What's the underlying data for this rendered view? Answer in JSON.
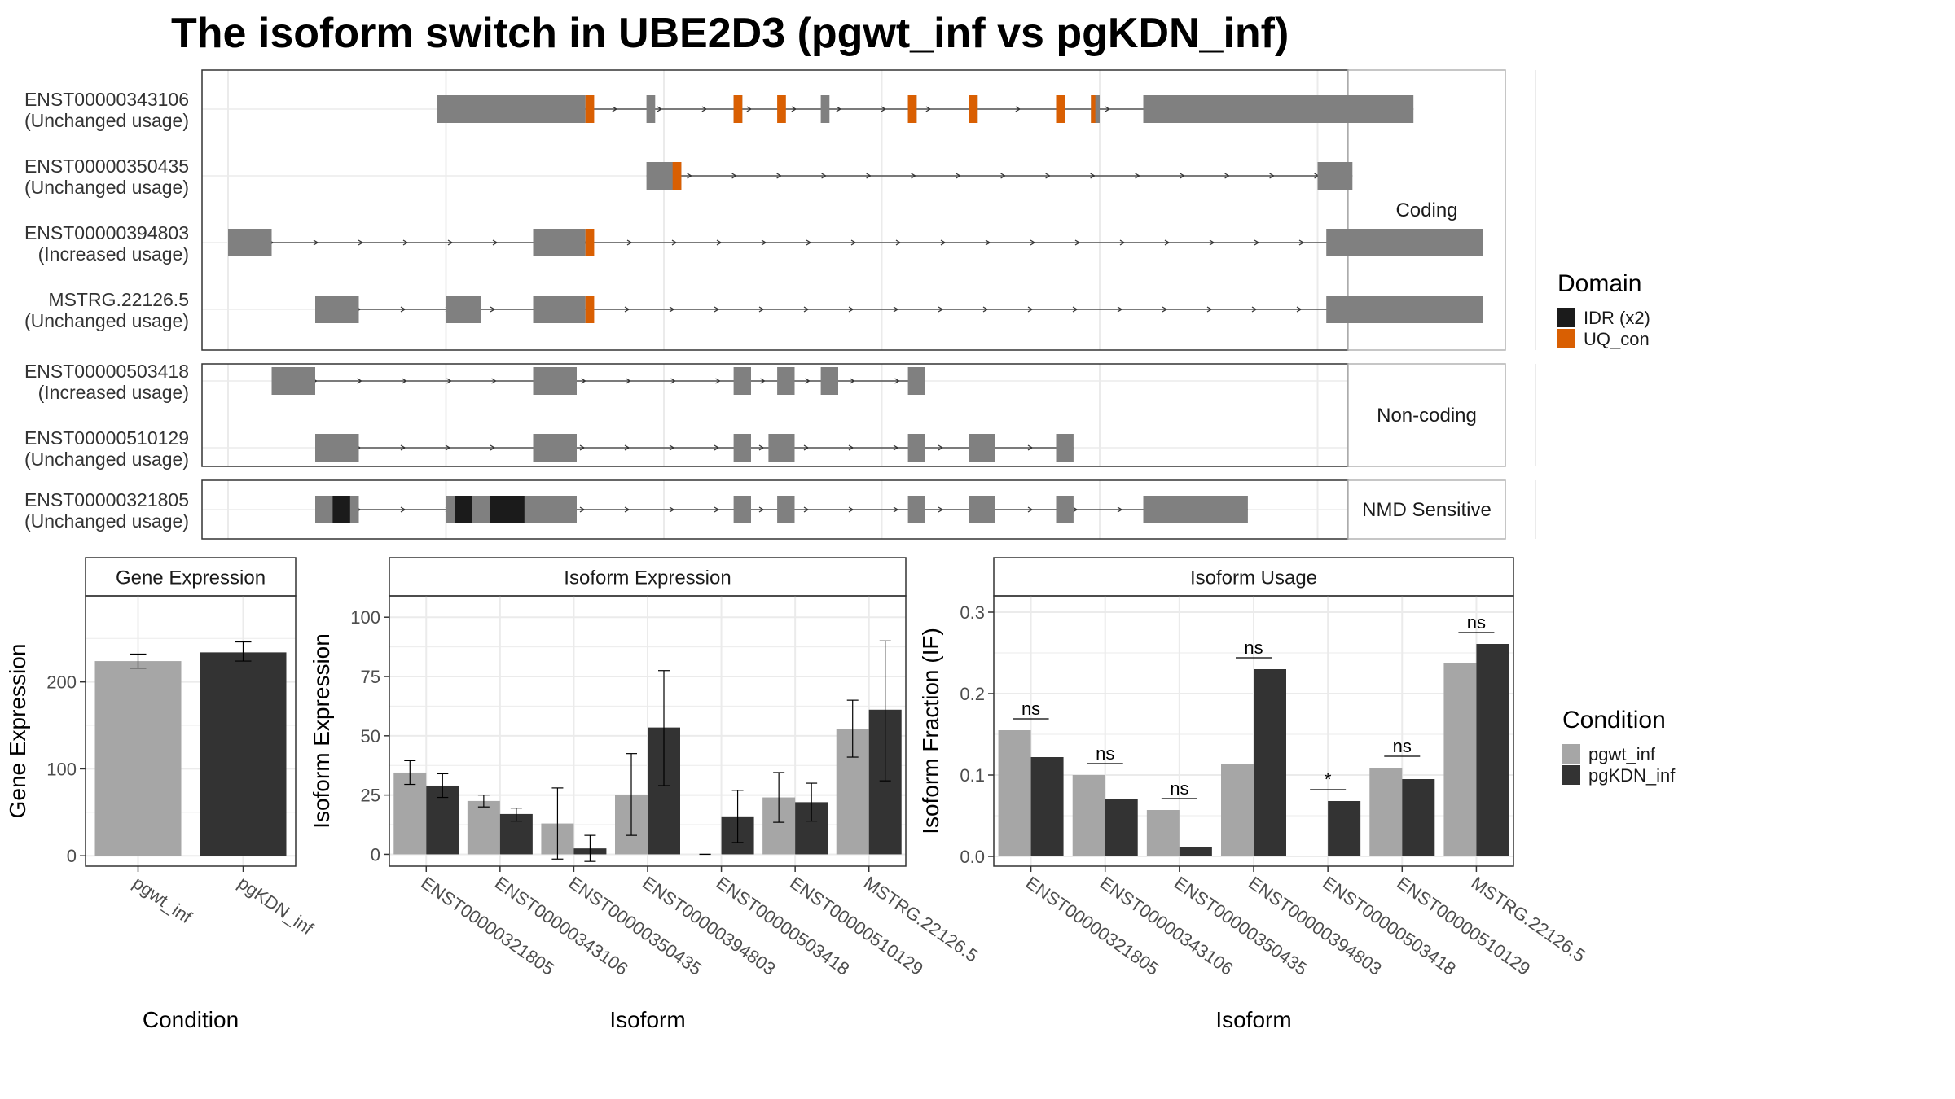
{
  "title": "The isoform switch in UBE2D3 (pgwt_inf vs pgKDN_inf)",
  "colors": {
    "exon": "#808080",
    "domain_uq": "#D95F02",
    "domain_idr": "#1B1B1B",
    "cond_wt": "#A6A6A6",
    "cond_kdn": "#333333",
    "grid": "#EBEBEB",
    "panel_border": "#333333",
    "strip_border": "#B3B3B3"
  },
  "structure": {
    "groups": [
      "Coding",
      "Non-coding",
      "NMD Sensitive"
    ],
    "transcripts": [
      {
        "id": "ENST00000343106",
        "usage": "(Unchanged usage)",
        "group": "Coding",
        "exons": [
          [
            0.24,
            0.41
          ],
          [
            0.48,
            0.49
          ],
          [
            0.58,
            0.59
          ],
          [
            0.68,
            0.69
          ],
          [
            0.78,
            0.79
          ],
          [
            0.85,
            0.86
          ],
          [
            0.95,
            0.96
          ],
          [
            0.99,
            1.0
          ],
          [
            1.05,
            1.36
          ]
        ],
        "domains": [
          [
            0.41,
            0.42,
            "UQ_con"
          ],
          [
            0.58,
            0.59,
            "UQ_con"
          ],
          [
            0.63,
            0.64,
            "UQ_con"
          ],
          [
            0.78,
            0.79,
            "UQ_con"
          ],
          [
            0.85,
            0.86,
            "UQ_con"
          ],
          [
            0.95,
            0.96,
            "UQ_con"
          ],
          [
            0.99,
            0.995,
            "UQ_con"
          ]
        ]
      },
      {
        "id": "ENST00000350435",
        "usage": "(Unchanged usage)",
        "group": "Coding",
        "exons": [
          [
            0.48,
            0.52
          ],
          [
            1.25,
            1.29
          ]
        ],
        "domains": [
          [
            0.51,
            0.52,
            "UQ_con"
          ]
        ]
      },
      {
        "id": "ENST00000394803",
        "usage": "(Increased usage)",
        "group": "Coding",
        "exons": [
          [
            0.0,
            0.05
          ],
          [
            0.35,
            0.41
          ],
          [
            1.26,
            1.44
          ]
        ],
        "domains": [
          [
            0.41,
            0.42,
            "UQ_con"
          ]
        ]
      },
      {
        "id": "MSTRG.22126.5",
        "usage": "(Unchanged usage)",
        "group": "Coding",
        "exons": [
          [
            0.1,
            0.15
          ],
          [
            0.25,
            0.29
          ],
          [
            0.35,
            0.41
          ],
          [
            1.26,
            1.44
          ]
        ],
        "domains": [
          [
            0.41,
            0.42,
            "UQ_con"
          ]
        ]
      },
      {
        "id": "ENST00000503418",
        "usage": "(Increased usage)",
        "group": "Non-coding",
        "exons": [
          [
            0.05,
            0.1
          ],
          [
            0.35,
            0.4
          ],
          [
            0.58,
            0.6
          ],
          [
            0.63,
            0.65
          ],
          [
            0.68,
            0.7
          ],
          [
            0.78,
            0.8
          ]
        ],
        "domains": []
      },
      {
        "id": "ENST00000510129",
        "usage": "(Unchanged usage)",
        "group": "Non-coding",
        "exons": [
          [
            0.1,
            0.15
          ],
          [
            0.35,
            0.4
          ],
          [
            0.58,
            0.6
          ],
          [
            0.62,
            0.65
          ],
          [
            0.78,
            0.8
          ],
          [
            0.85,
            0.88
          ],
          [
            0.95,
            0.97
          ]
        ],
        "domains": []
      },
      {
        "id": "ENST00000321805",
        "usage": "(Unchanged usage)",
        "group": "NMD Sensitive",
        "exons": [
          [
            0.1,
            0.15
          ],
          [
            0.25,
            0.4
          ],
          [
            0.58,
            0.6
          ],
          [
            0.63,
            0.65
          ],
          [
            0.78,
            0.8
          ],
          [
            0.85,
            0.88
          ],
          [
            0.95,
            0.97
          ],
          [
            1.05,
            1.17
          ]
        ],
        "domains": [
          [
            0.12,
            0.14,
            "IDR (x2)"
          ],
          [
            0.26,
            0.28,
            "IDR (x2)"
          ],
          [
            0.3,
            0.34,
            "IDR (x2)"
          ]
        ]
      }
    ]
  },
  "legend_domain": {
    "title": "Domain",
    "items": [
      {
        "label": "IDR (x2)",
        "color": "#1B1B1B"
      },
      {
        "label": "UQ_con",
        "color": "#D95F02"
      }
    ]
  },
  "legend_condition": {
    "title": "Condition",
    "items": [
      {
        "label": "pgwt_inf",
        "color": "#A6A6A6"
      },
      {
        "label": "pgKDN_inf",
        "color": "#333333"
      }
    ]
  },
  "chart_data": [
    {
      "type": "bar",
      "title": "Gene Expression",
      "xlabel": "Condition",
      "ylabel": "Gene Expression",
      "categories": [
        "pgwt_inf",
        "pgKDN_inf"
      ],
      "values": [
        224,
        234
      ],
      "errors": [
        [
          216,
          232
        ],
        [
          224,
          246
        ]
      ],
      "ylim": [
        -12,
        299
      ],
      "yticks": [
        0,
        100,
        200
      ]
    },
    {
      "type": "bar",
      "title": "Isoform Expression",
      "xlabel": "Isoform",
      "ylabel": "Isoform Expression",
      "categories": [
        "ENST00000321805",
        "ENST00000343106",
        "ENST00000350435",
        "ENST00000394803",
        "ENST00000503418",
        "ENST00000510129",
        "MSTRG.22126.5"
      ],
      "series": [
        {
          "name": "pgwt_inf",
          "values": [
            34.5,
            22.5,
            13.0,
            25.0,
            0.0,
            24.0,
            53.0
          ],
          "errors": [
            [
              29.5,
              39.5
            ],
            [
              20,
              25
            ],
            [
              -2,
              28
            ],
            [
              8,
              42.5
            ],
            [
              0,
              0
            ],
            [
              13.5,
              34.5
            ],
            [
              41,
              65
            ]
          ]
        },
        {
          "name": "pgKDN_inf",
          "values": [
            29.0,
            17.0,
            2.5,
            53.5,
            16.0,
            22.0,
            61.0
          ],
          "errors": [
            [
              24,
              34
            ],
            [
              14,
              19.5
            ],
            [
              -3,
              8
            ],
            [
              29,
              77.5
            ],
            [
              5,
              27
            ],
            [
              14,
              30
            ],
            [
              31,
              90
            ]
          ]
        }
      ],
      "ylim": [
        -5,
        109
      ],
      "yticks": [
        0,
        25,
        50,
        75,
        100
      ]
    },
    {
      "type": "bar",
      "title": "Isoform Usage",
      "xlabel": "Isoform",
      "ylabel": "Isoform Fraction (IF)",
      "categories": [
        "ENST00000321805",
        "ENST00000343106",
        "ENST00000350435",
        "ENST00000394803",
        "ENST00000503418",
        "ENST00000510129",
        "MSTRG.22126.5"
      ],
      "series": [
        {
          "name": "pgwt_inf",
          "values": [
            0.155,
            0.1,
            0.057,
            0.114,
            0.0,
            0.109,
            0.237
          ]
        },
        {
          "name": "pgKDN_inf",
          "values": [
            0.122,
            0.071,
            0.012,
            0.23,
            0.068,
            0.095,
            0.261
          ]
        }
      ],
      "significance": [
        "ns",
        "ns",
        "ns",
        "ns",
        "*",
        "ns",
        "ns"
      ],
      "ylim": [
        -0.012,
        0.32
      ],
      "yticks": [
        0.0,
        0.1,
        0.2,
        0.3
      ]
    }
  ]
}
